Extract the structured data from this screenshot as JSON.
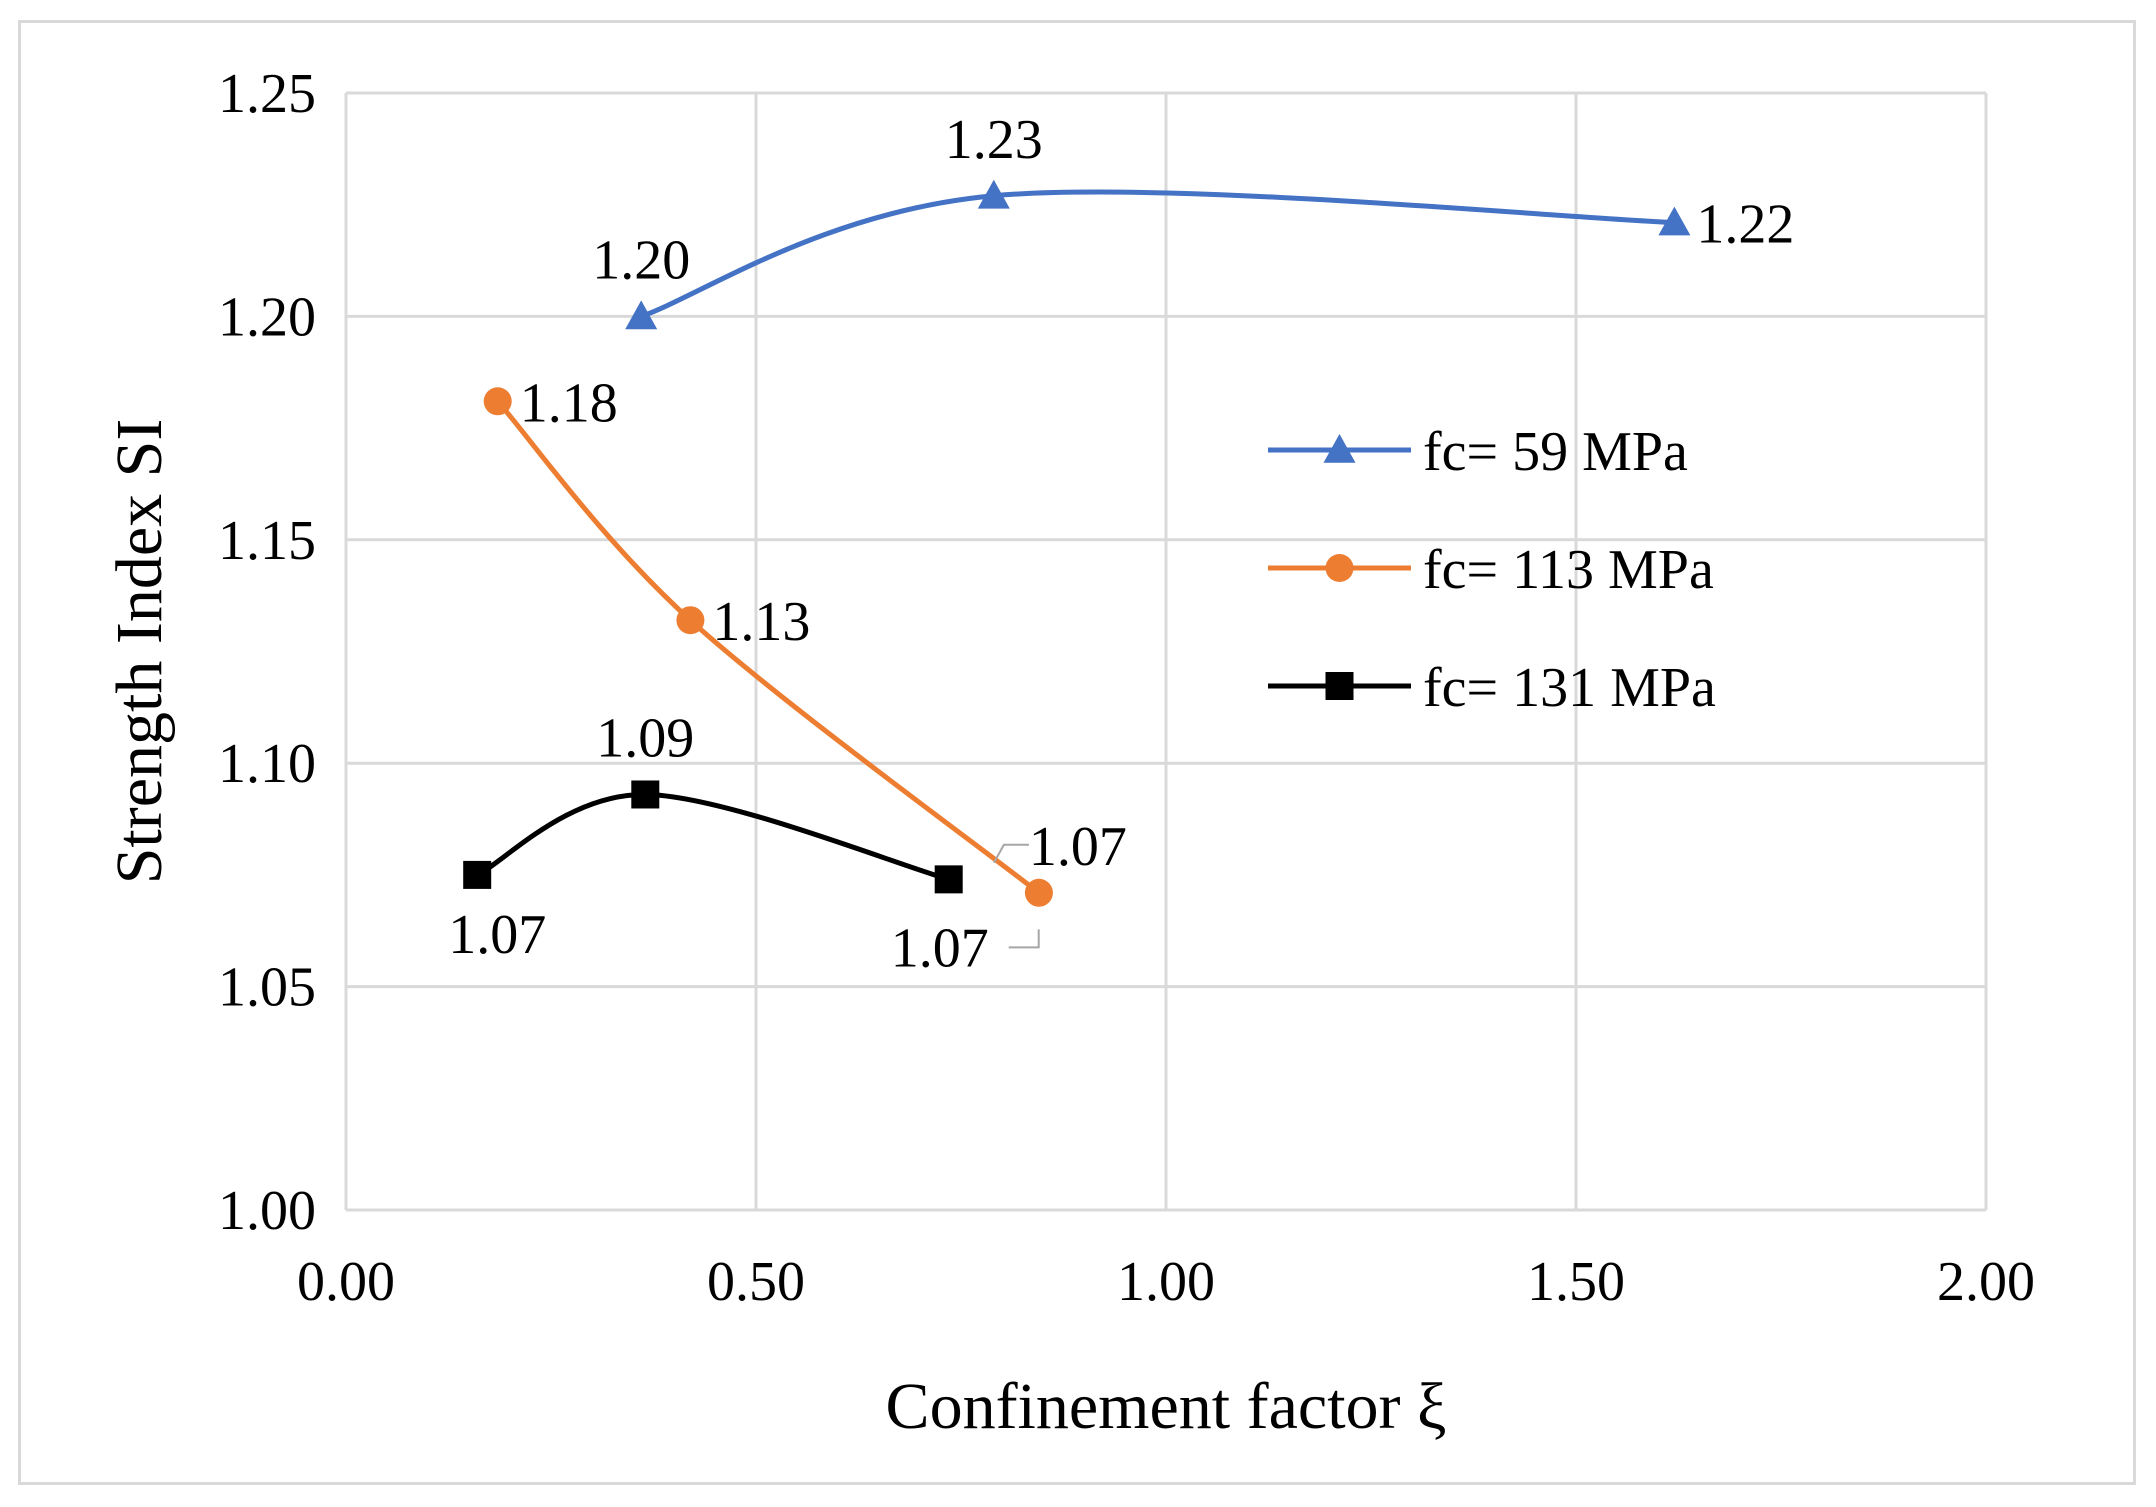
{
  "chart_data": {
    "type": "line",
    "title": "",
    "xlabel": "Confinement factor ξ",
    "ylabel": "Strength Index SI",
    "xlim": [
      0,
      2
    ],
    "ylim": [
      1.0,
      1.25
    ],
    "x_ticks": [
      0,
      0.5,
      1.0,
      1.5,
      2.0
    ],
    "x_tick_labels": [
      "0.00",
      "0.50",
      "1.00",
      "1.50",
      "2.00"
    ],
    "y_ticks": [
      1.0,
      1.05,
      1.1,
      1.15,
      1.2,
      1.25
    ],
    "y_tick_labels": [
      "1.00",
      "1.05",
      "1.10",
      "1.15",
      "1.20",
      "1.25"
    ],
    "grid": true,
    "smooth": true,
    "legend_position": "right-middle",
    "series": [
      {
        "name": "fc= 59 MPa",
        "color": "#4472c4",
        "marker": "triangle",
        "points": [
          {
            "x": 0.36,
            "y": 1.2,
            "label": "1.20",
            "label_pos": "above"
          },
          {
            "x": 0.79,
            "y": 1.227,
            "label": "1.23",
            "label_pos": "above"
          },
          {
            "x": 1.62,
            "y": 1.221,
            "label": "1.22",
            "label_pos": "right"
          }
        ]
      },
      {
        "name": "fc= 113 MPa",
        "color": "#ed7d31",
        "marker": "circle",
        "points": [
          {
            "x": 0.185,
            "y": 1.181,
            "label": "1.18",
            "label_pos": "right"
          },
          {
            "x": 0.42,
            "y": 1.132,
            "label": "1.13",
            "label_pos": "right"
          },
          {
            "x": 0.845,
            "y": 1.071,
            "label": "1.07",
            "label_pos": "upper-right-leader"
          }
        ]
      },
      {
        "name": "fc= 131 MPa",
        "color": "#000000",
        "marker": "square",
        "points": [
          {
            "x": 0.16,
            "y": 1.075,
            "label": "1.07",
            "label_pos": "below"
          },
          {
            "x": 0.365,
            "y": 1.093,
            "label": "1.09",
            "label_pos": "above"
          },
          {
            "x": 0.735,
            "y": 1.074,
            "label": "1.07",
            "label_pos": "lower-right-leader"
          }
        ]
      }
    ]
  }
}
